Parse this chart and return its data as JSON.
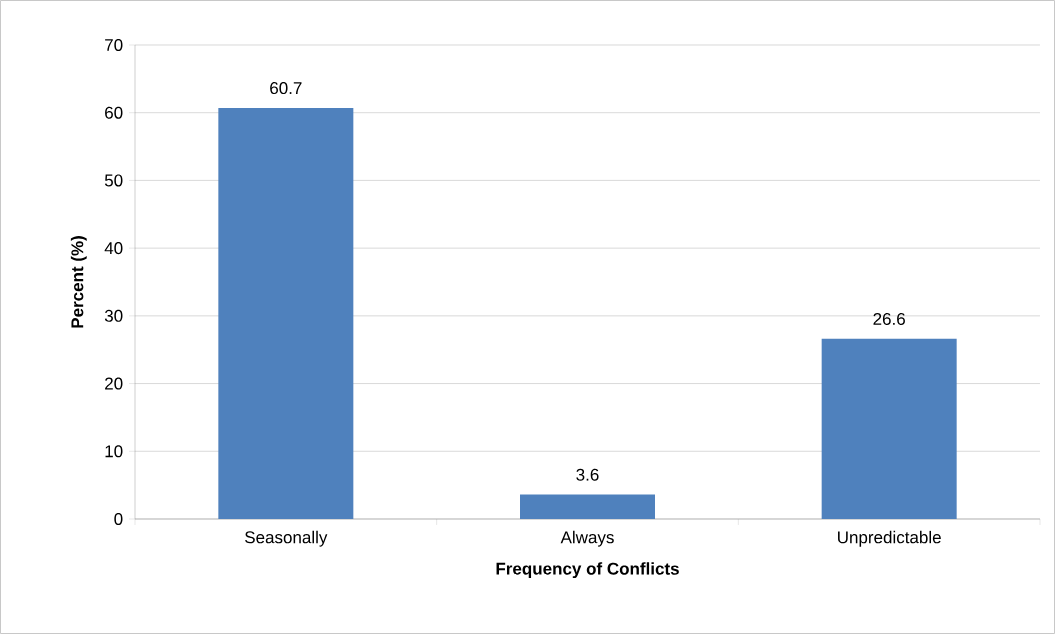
{
  "chart_data": {
    "type": "bar",
    "xlabel": "Frequency of Conflicts",
    "ylabel": "Percent (%)",
    "categories": [
      "Seasonally",
      "Always",
      "Unpredictable"
    ],
    "values": [
      60.7,
      3.6,
      26.6
    ],
    "value_labels": [
      "60.7",
      "3.6",
      "26.6"
    ],
    "color": "#4f81bd",
    "ylim": [
      0,
      70
    ],
    "yticks": [
      0,
      10,
      20,
      30,
      40,
      50,
      60,
      70
    ],
    "grid": "y"
  }
}
